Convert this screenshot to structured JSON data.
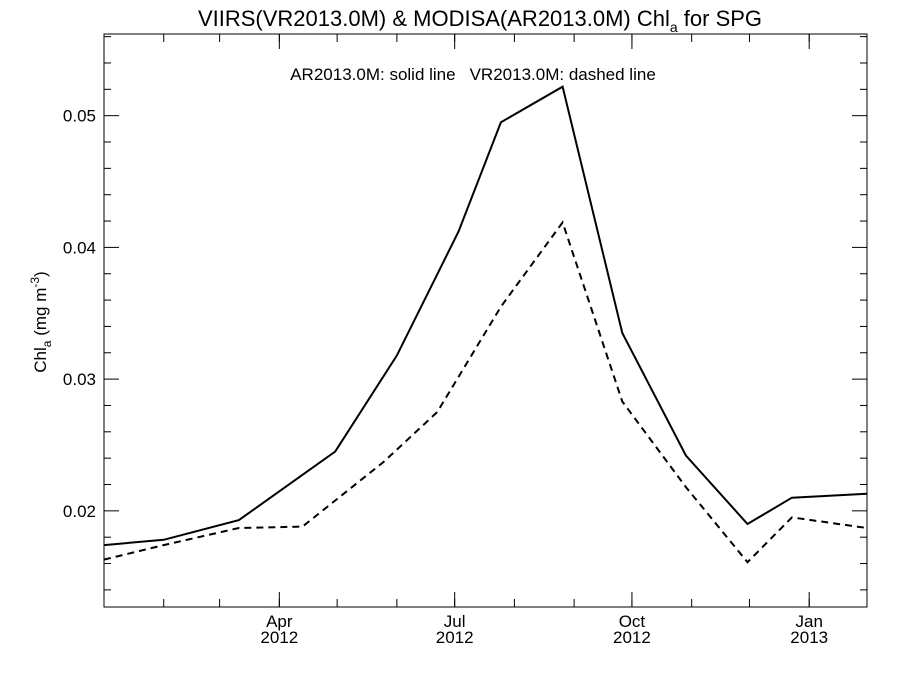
{
  "chart_data": {
    "type": "line",
    "title": {
      "before": "VIIRS(VR2013.0M) & MODISA(AR2013.0M)  Chl",
      "subscript": "a",
      "after": " for SPG"
    },
    "ylabel": {
      "before": "Chl",
      "subscript": "a",
      "middle": " (mg m",
      "superscript": "-3",
      "after": ")"
    },
    "annotation": {
      "solid": "AR2013.0M: solid line",
      "dashed": "VR2013.0M: dashed line"
    },
    "xlim": [
      "2012-01-01",
      "2013-01-31"
    ],
    "ylim": [
      0.0127,
      0.0562
    ],
    "x_ticks": [
      {
        "date": "2012-04-01",
        "month": "Apr",
        "year": "2012"
      },
      {
        "date": "2012-07-01",
        "month": "Jul",
        "year": "2012"
      },
      {
        "date": "2012-10-01",
        "month": "Oct",
        "year": "2012"
      },
      {
        "date": "2013-01-01",
        "month": "Jan",
        "year": "2013"
      }
    ],
    "y_ticks": [
      "0.02",
      "0.03",
      "0.04",
      "0.05"
    ],
    "series": [
      {
        "label": "AR2013.0M",
        "style": "solid",
        "color": "#000000",
        "points": [
          {
            "x": "2012-01-01",
            "y": 0.0174
          },
          {
            "x": "2012-02-01",
            "y": 0.0178
          },
          {
            "x": "2012-03-11",
            "y": 0.0193
          },
          {
            "x": "2012-04-30",
            "y": 0.0245
          },
          {
            "x": "2012-06-01",
            "y": 0.0318
          },
          {
            "x": "2012-07-03",
            "y": 0.0412
          },
          {
            "x": "2012-07-25",
            "y": 0.0495
          },
          {
            "x": "2012-08-26",
            "y": 0.0522
          },
          {
            "x": "2012-09-26",
            "y": 0.0335
          },
          {
            "x": "2012-10-29",
            "y": 0.0242
          },
          {
            "x": "2012-11-30",
            "y": 0.019
          },
          {
            "x": "2012-12-23",
            "y": 0.021
          },
          {
            "x": "2013-01-31",
            "y": 0.0213
          }
        ]
      },
      {
        "label": "VR2013.0M",
        "style": "dashed",
        "color": "#000000",
        "points": [
          {
            "x": "2012-01-01",
            "y": 0.0163
          },
          {
            "x": "2012-02-01",
            "y": 0.0174
          },
          {
            "x": "2012-03-11",
            "y": 0.0187
          },
          {
            "x": "2012-04-13",
            "y": 0.0188
          },
          {
            "x": "2012-05-25",
            "y": 0.0237
          },
          {
            "x": "2012-06-22",
            "y": 0.0275
          },
          {
            "x": "2012-07-25",
            "y": 0.0355
          },
          {
            "x": "2012-08-26",
            "y": 0.0419
          },
          {
            "x": "2012-09-26",
            "y": 0.0283
          },
          {
            "x": "2012-10-29",
            "y": 0.0218
          },
          {
            "x": "2012-11-30",
            "y": 0.0161
          },
          {
            "x": "2012-12-23",
            "y": 0.0195
          },
          {
            "x": "2013-01-31",
            "y": 0.0187
          }
        ]
      }
    ]
  }
}
